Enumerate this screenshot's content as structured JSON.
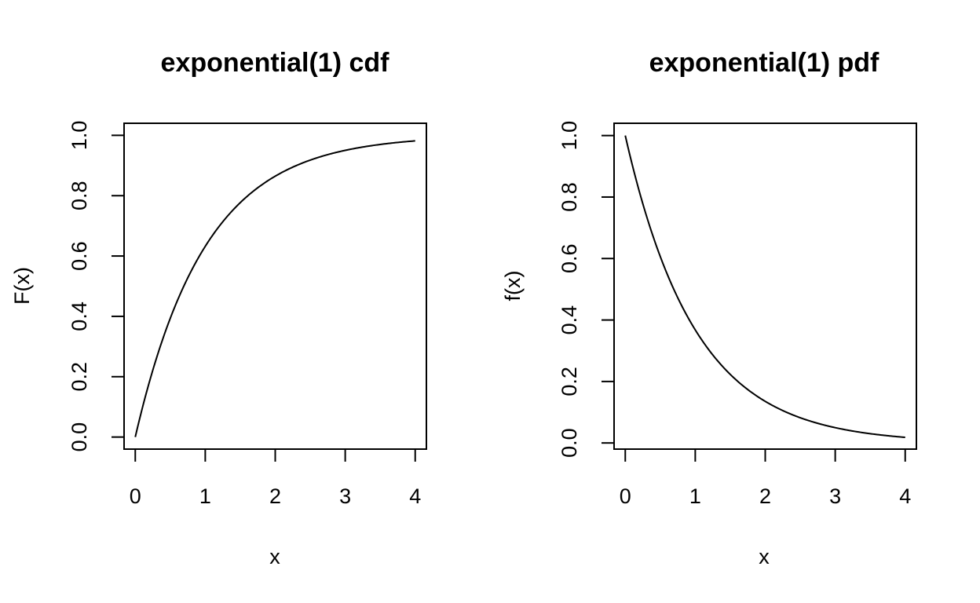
{
  "chart_data": [
    {
      "type": "line",
      "title": "exponential(1) cdf",
      "xlabel": "x",
      "ylabel": "F(x)",
      "xlim": [
        -0.16,
        4.16
      ],
      "ylim": [
        -0.04,
        1.04
      ],
      "xticks": [
        0,
        1,
        2,
        3,
        4
      ],
      "xtick_labels": [
        "0",
        "1",
        "2",
        "3",
        "4"
      ],
      "yticks": [
        0,
        0.2,
        0.4,
        0.6,
        0.8,
        1
      ],
      "ytick_labels": [
        "0.0",
        "0.2",
        "0.4",
        "0.6",
        "0.8",
        "1.0"
      ],
      "grid": false,
      "series": [
        {
          "x": [
            0,
            0.25,
            0.5,
            0.75,
            1,
            1.25,
            1.5,
            1.75,
            2,
            2.25,
            2.5,
            2.75,
            3,
            3.25,
            3.5,
            3.75,
            4
          ],
          "y": [
            0,
            0.221,
            0.393,
            0.528,
            0.632,
            0.713,
            0.777,
            0.826,
            0.865,
            0.895,
            0.918,
            0.936,
            0.95,
            0.961,
            0.97,
            0.976,
            0.982
          ]
        }
      ]
    },
    {
      "type": "line",
      "title": "exponential(1) pdf",
      "xlabel": "x",
      "ylabel": "f(x)",
      "xlim": [
        -0.16,
        4.16
      ],
      "ylim": [
        -0.02,
        1.04
      ],
      "xticks": [
        0,
        1,
        2,
        3,
        4
      ],
      "xtick_labels": [
        "0",
        "1",
        "2",
        "3",
        "4"
      ],
      "yticks": [
        0,
        0.2,
        0.4,
        0.6,
        0.8,
        1
      ],
      "ytick_labels": [
        "0.0",
        "0.2",
        "0.4",
        "0.6",
        "0.8",
        "1.0"
      ],
      "grid": false,
      "series": [
        {
          "x": [
            0,
            0.25,
            0.5,
            0.75,
            1,
            1.25,
            1.5,
            1.75,
            2,
            2.25,
            2.5,
            2.75,
            3,
            3.25,
            3.5,
            3.75,
            4
          ],
          "y": [
            1,
            0.779,
            0.607,
            0.472,
            0.368,
            0.287,
            0.223,
            0.174,
            0.135,
            0.105,
            0.082,
            0.064,
            0.05,
            0.039,
            0.03,
            0.024,
            0.018
          ]
        }
      ]
    }
  ]
}
